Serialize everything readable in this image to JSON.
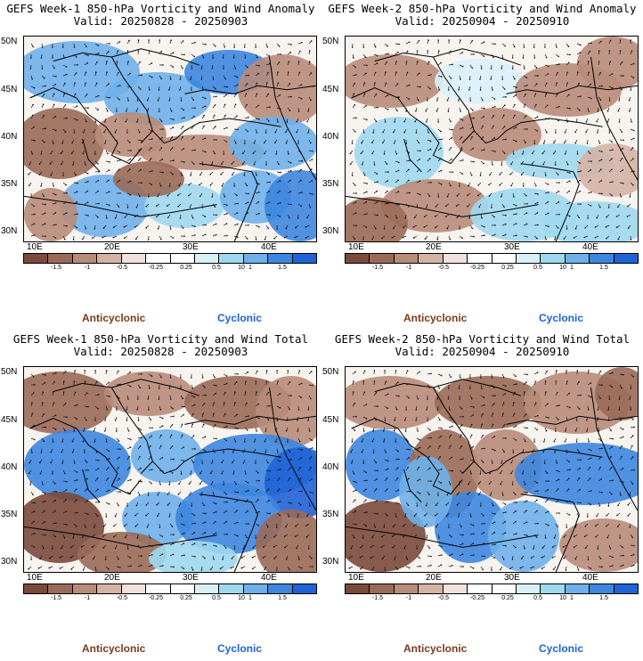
{
  "colors": {
    "scale": [
      "#7a4a3b",
      "#9a6a58",
      "#b88c7a",
      "#d4b3a5",
      "#efe2da",
      "#ffffff",
      "#ffffff",
      "#d8f1f8",
      "#9ed8ef",
      "#6fb0ea",
      "#3d86df",
      "#1f63d6"
    ],
    "anticyclonic": "#7b3b20",
    "cyclonic": "#1f63d6"
  },
  "shared": {
    "lat_labels": [
      "50N",
      "45N",
      "40N",
      "35N",
      "30N"
    ],
    "lon_labels": [
      "10E",
      "20E",
      "30E",
      "40E"
    ],
    "colorbar_labels": [
      "-1.5",
      "-1",
      "-0.5",
      "-0.25",
      "0.25",
      "0.5",
      "1",
      "1.5"
    ],
    "legend_anticyclonic": "Anticyclonic",
    "legend_cyclonic": "Cyclonic"
  },
  "panels": [
    {
      "title_line1": "GEFS Week-1 850-hPa Vorticity and Wind Anomaly",
      "title_line2": "Valid: 20250828 - 20250903",
      "pattern": "anomaly-week1",
      "cb_scale_note": "10"
    },
    {
      "title_line1": "GEFS Week-2 850-hPa Vorticity and Wind Anomaly",
      "title_line2": "Valid: 20250904 - 20250910",
      "pattern": "anomaly-week2",
      "cb_scale_note": "10"
    },
    {
      "title_line1": "GEFS Week-1 850-hPa Vorticity and Wind Total",
      "title_line2": "Valid: 20250828 - 20250903",
      "pattern": "total-week1",
      "cb_scale_note": "10"
    },
    {
      "title_line1": "GEFS Week-2 850-hPa Vorticity and Wind Total",
      "title_line2": "Valid: 20250904 - 20250910",
      "pattern": "total-week2",
      "cb_scale_note": "10"
    }
  ]
}
